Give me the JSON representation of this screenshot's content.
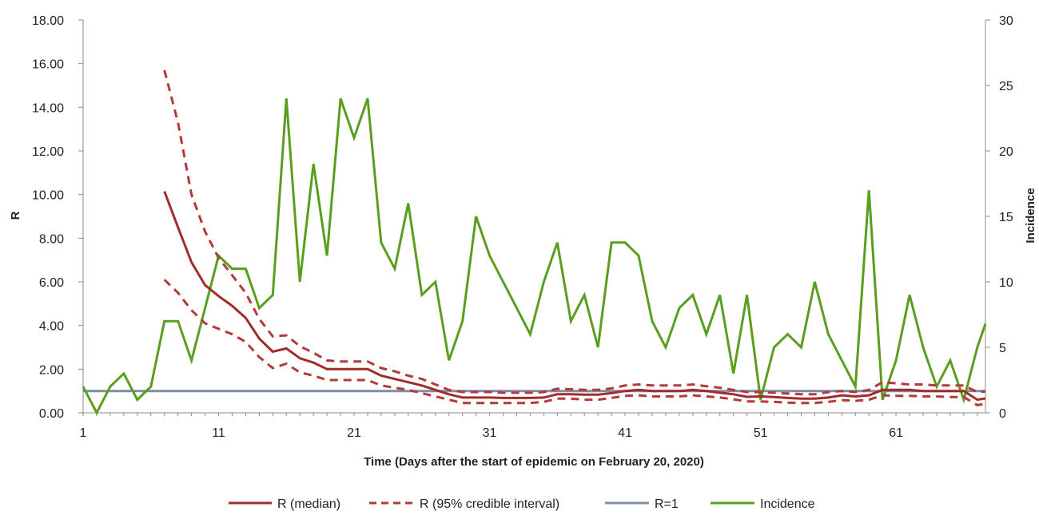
{
  "chart_data": {
    "type": "line",
    "xlabel": "Time (Days after the start of epidemic on February 20, 2020)",
    "ylabel": "R",
    "y2label": "Incidence",
    "x_ticks": [
      1,
      11,
      21,
      31,
      41,
      51,
      61
    ],
    "y_ticks": [
      "0.00",
      "2.00",
      "4.00",
      "6.00",
      "8.00",
      "10.00",
      "12.00",
      "14.00",
      "16.00",
      "18.00"
    ],
    "y2_ticks": [
      "0",
      "5",
      "10",
      "15",
      "20",
      "25",
      "30"
    ],
    "xlim": [
      1,
      67.6
    ],
    "ylim": [
      0,
      18
    ],
    "y2lim": [
      0,
      30
    ],
    "grid": false,
    "legend_position": "bottom",
    "colors": {
      "median": "#a02c2c",
      "ci": "#b33a3a",
      "r1": "#7f8fa6",
      "incidence": "#5a9e1e"
    },
    "series": [
      {
        "name": "R (median)",
        "axis": "left",
        "style": "solid",
        "x": [
          7,
          8,
          9,
          10,
          11,
          12,
          13,
          14,
          15,
          16,
          17,
          18,
          19,
          20,
          21,
          22,
          23,
          24,
          25,
          26,
          27,
          28,
          29,
          30,
          31,
          32,
          33,
          34,
          35,
          36,
          37,
          38,
          39,
          40,
          41,
          42,
          43,
          44,
          45,
          46,
          47,
          48,
          49,
          50,
          51,
          52,
          53,
          54,
          55,
          56,
          57,
          58,
          59,
          60,
          61,
          62,
          63,
          64,
          65,
          66,
          67,
          68
        ],
        "y": [
          10.15,
          8.5,
          6.9,
          5.85,
          5.35,
          4.9,
          4.35,
          3.4,
          2.8,
          2.95,
          2.5,
          2.3,
          2.0,
          2.0,
          2.0,
          2.0,
          1.7,
          1.55,
          1.4,
          1.25,
          1.05,
          0.85,
          0.7,
          0.7,
          0.7,
          0.68,
          0.68,
          0.68,
          0.7,
          0.85,
          0.85,
          0.83,
          0.83,
          0.9,
          1.0,
          1.05,
          1.0,
          1.0,
          1.0,
          1.05,
          1.0,
          0.92,
          0.85,
          0.73,
          0.75,
          0.72,
          0.68,
          0.65,
          0.65,
          0.7,
          0.8,
          0.75,
          0.8,
          1.05,
          1.05,
          1.05,
          1.0,
          1.0,
          1.0,
          1.0,
          0.6,
          0.7
        ]
      },
      {
        "name": "R (95% credible interval)",
        "axis": "left",
        "style": "dashed",
        "upper": [
          15.7,
          13.3,
          10.0,
          8.3,
          7.1,
          6.3,
          5.5,
          4.3,
          3.5,
          3.55,
          3.05,
          2.75,
          2.4,
          2.35,
          2.35,
          2.35,
          2.05,
          1.9,
          1.7,
          1.55,
          1.3,
          1.05,
          0.95,
          0.95,
          0.95,
          0.92,
          0.92,
          0.92,
          0.95,
          1.1,
          1.08,
          1.05,
          1.05,
          1.12,
          1.25,
          1.3,
          1.25,
          1.25,
          1.25,
          1.3,
          1.22,
          1.15,
          1.05,
          0.95,
          0.95,
          0.92,
          0.88,
          0.85,
          0.85,
          0.95,
          1.0,
          0.95,
          1.05,
          1.4,
          1.35,
          1.3,
          1.3,
          1.25,
          1.25,
          1.25,
          0.95,
          1.0
        ],
        "lower": [
          6.1,
          5.5,
          4.7,
          4.1,
          3.85,
          3.6,
          3.25,
          2.55,
          2.05,
          2.25,
          1.85,
          1.7,
          1.5,
          1.5,
          1.5,
          1.5,
          1.25,
          1.15,
          1.05,
          0.9,
          0.75,
          0.6,
          0.45,
          0.45,
          0.45,
          0.45,
          0.45,
          0.45,
          0.5,
          0.65,
          0.65,
          0.6,
          0.6,
          0.68,
          0.78,
          0.8,
          0.75,
          0.75,
          0.75,
          0.8,
          0.75,
          0.7,
          0.62,
          0.52,
          0.52,
          0.5,
          0.47,
          0.45,
          0.45,
          0.5,
          0.58,
          0.55,
          0.6,
          0.8,
          0.78,
          0.78,
          0.75,
          0.75,
          0.72,
          0.72,
          0.35,
          0.45
        ]
      },
      {
        "name": "R=1",
        "axis": "left",
        "style": "solid",
        "x": [
          1,
          67.6
        ],
        "y": [
          1,
          1
        ]
      },
      {
        "name": "Incidence",
        "axis": "right",
        "style": "solid",
        "x": [
          1,
          2,
          3,
          4,
          5,
          6,
          7,
          8,
          9,
          10,
          11,
          12,
          13,
          14,
          15,
          16,
          17,
          18,
          19,
          20,
          21,
          22,
          23,
          24,
          25,
          26,
          27,
          28,
          29,
          30,
          31,
          32,
          33,
          34,
          35,
          36,
          37,
          38,
          39,
          40,
          41,
          42,
          43,
          44,
          45,
          46,
          47,
          48,
          49,
          50,
          51,
          52,
          53,
          54,
          55,
          56,
          57,
          58,
          59,
          60,
          61,
          62,
          63,
          64,
          65,
          66,
          67,
          68
        ],
        "y": [
          2,
          0,
          2,
          3,
          1,
          2,
          7,
          7,
          4,
          8,
          12,
          11,
          11,
          8,
          9,
          24,
          10,
          19,
          12,
          24,
          21,
          24,
          13,
          11,
          16,
          9,
          10,
          4,
          7,
          15,
          12,
          10,
          8,
          6,
          10,
          13,
          7,
          9,
          5,
          13,
          13,
          12,
          7,
          5,
          8,
          9,
          6,
          9,
          3,
          9,
          1,
          5,
          6,
          5,
          10,
          6,
          4,
          2,
          17,
          1,
          4,
          9,
          5,
          2,
          4,
          1,
          5,
          8
        ]
      }
    ]
  }
}
